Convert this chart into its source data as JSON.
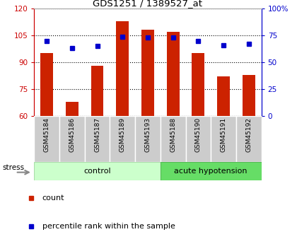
{
  "title": "GDS1251 / 1389527_at",
  "samples": [
    "GSM45184",
    "GSM45186",
    "GSM45187",
    "GSM45189",
    "GSM45193",
    "GSM45188",
    "GSM45190",
    "GSM45191",
    "GSM45192"
  ],
  "counts": [
    95,
    68,
    88,
    113,
    108,
    107,
    95,
    82,
    83
  ],
  "percentiles": [
    70,
    63,
    65,
    74,
    73,
    73,
    70,
    66,
    67
  ],
  "ylim_left": [
    60,
    120
  ],
  "ylim_right": [
    0,
    100
  ],
  "yticks_left": [
    60,
    75,
    90,
    105,
    120
  ],
  "yticks_right": [
    0,
    25,
    50,
    75,
    100
  ],
  "bar_color": "#cc2200",
  "dot_color": "#0000cc",
  "n_control": 5,
  "n_acute": 4,
  "control_label": "control",
  "acute_label": "acute hypotension",
  "stress_label": "stress",
  "legend_count": "count",
  "legend_pct": "percentile rank within the sample",
  "bg_plot": "#ffffff",
  "bg_xlabel": "#cccccc",
  "bg_control": "#ccffcc",
  "bg_acute": "#66dd66",
  "title_color": "#000000",
  "left_axis_color": "#cc0000",
  "right_axis_color": "#0000cc",
  "grid_color": "#000000",
  "bar_width": 0.5
}
